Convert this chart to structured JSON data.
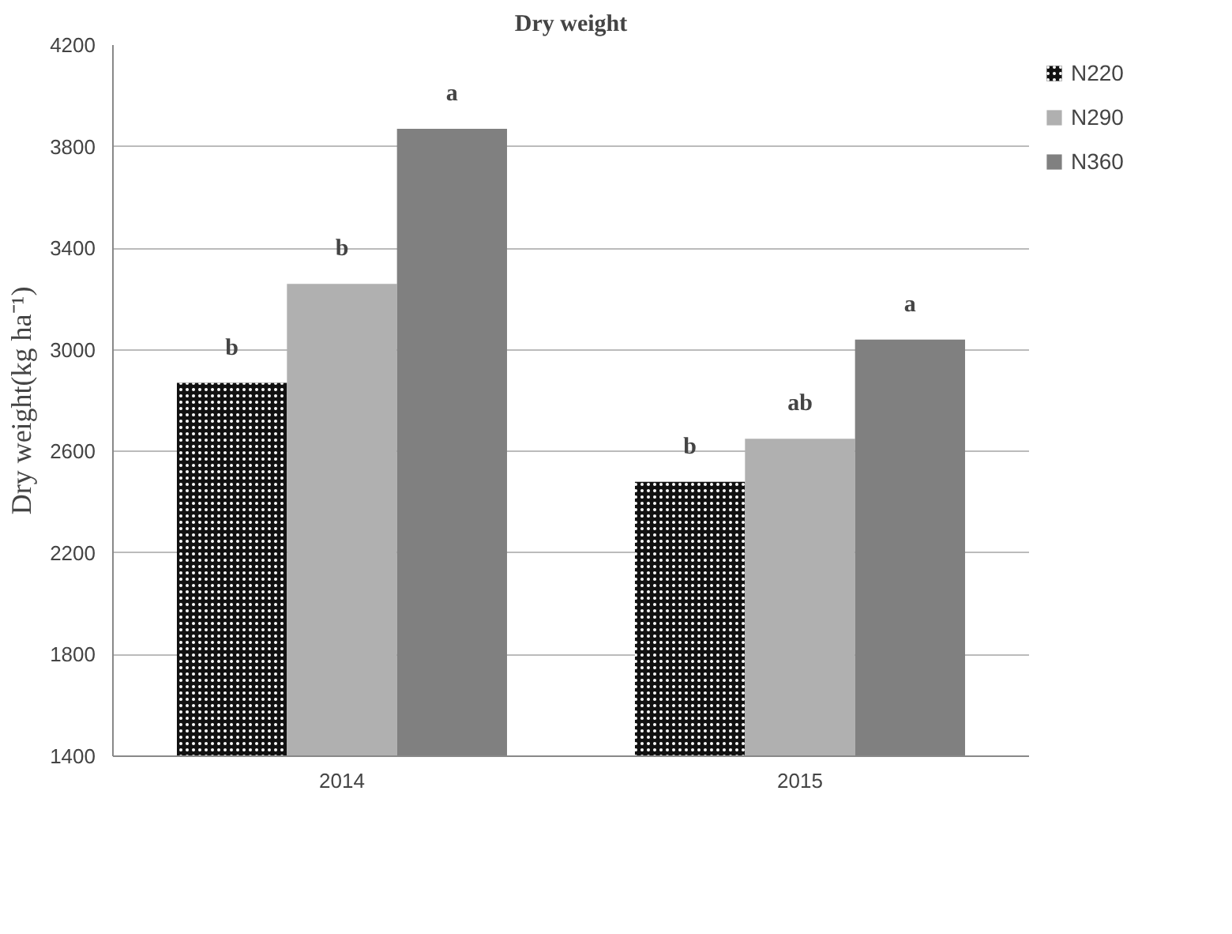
{
  "chart_data": {
    "type": "bar",
    "title": "Dry weight",
    "ylabel": "Dry weight(kg ha⁻¹)",
    "categories": [
      "2014",
      "2015"
    ],
    "series": [
      {
        "name": "N220",
        "color": "#111111",
        "values": [
          2870,
          2480
        ],
        "value_labels": [
          "b",
          "b"
        ]
      },
      {
        "name": "N290",
        "color": "#b0b0b0",
        "values": [
          3260,
          2650
        ],
        "value_labels": [
          "b",
          "ab"
        ]
      },
      {
        "name": "N360",
        "color": "#808080",
        "values": [
          3870,
          3040
        ],
        "value_labels": [
          "a",
          "a"
        ]
      }
    ],
    "ylim": [
      1400,
      4200
    ],
    "yticks": [
      1400,
      1800,
      2200,
      2600,
      3000,
      3400,
      3800,
      4200
    ],
    "grid": "y",
    "legend": "right"
  }
}
